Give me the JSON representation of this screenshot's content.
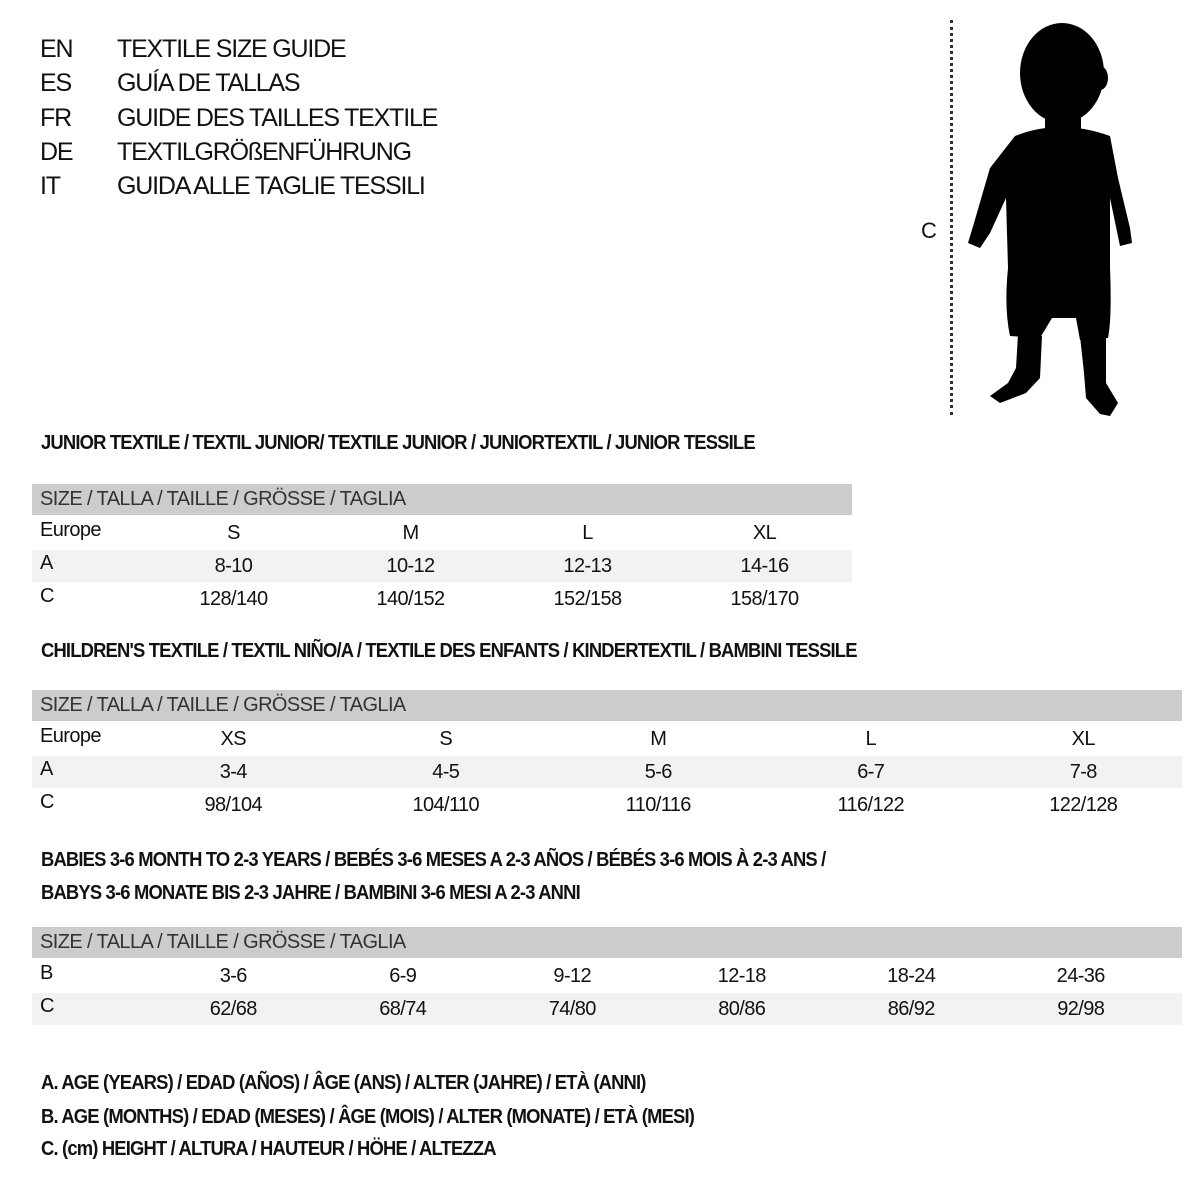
{
  "titles": [
    {
      "code": "EN",
      "text": "TEXTILE SIZE GUIDE"
    },
    {
      "code": "ES",
      "text": "GUÍA DE TALLAS"
    },
    {
      "code": "FR",
      "text": "GUIDE DES TAILLES TEXTILE"
    },
    {
      "code": "DE",
      "text": "TEXTILGRÖßENFÜHRUNG"
    },
    {
      "code": "IT",
      "text": "GUIDA ALLE TAGLIE TESSILI"
    }
  ],
  "figure": {
    "measure_label": "C"
  },
  "sections": [
    {
      "title_lines": [
        "JUNIOR TEXTILE / TEXTIL JUNIOR/ TEXTILE JUNIOR / JUNIORTEXTIL / JUNIOR TESSILE"
      ],
      "header": "SIZE / TALLA / TAILLE / GRÖSSE / TAGLIA",
      "rows": [
        {
          "label": "Europe",
          "values": [
            "S",
            "M",
            "L",
            "XL"
          ]
        },
        {
          "label": "A",
          "values": [
            "8-10",
            "10-12",
            "12-13",
            "14-16"
          ]
        },
        {
          "label": "C",
          "values": [
            "128/140",
            "140/152",
            "152/158",
            "158/170"
          ]
        }
      ]
    },
    {
      "title_lines": [
        "CHILDREN'S TEXTILE / TEXTIL NIÑO/A / TEXTILE DES ENFANTS / KINDERTEXTIL / BAMBINI TESSILE"
      ],
      "header": "SIZE / TALLA / TAILLE / GRÖSSE / TAGLIA",
      "rows": [
        {
          "label": "Europe",
          "values": [
            "XS",
            "S",
            "M",
            "L",
            "XL"
          ]
        },
        {
          "label": "A",
          "values": [
            "3-4",
            "4-5",
            "5-6",
            "6-7",
            "7-8"
          ]
        },
        {
          "label": "C",
          "values": [
            "98/104",
            "104/110",
            "110/116",
            "116/122",
            "122/128"
          ]
        }
      ]
    },
    {
      "title_lines": [
        "BABIES 3-6 MONTH TO 2-3 YEARS / BEBÉS 3-6 MESES A 2-3 AÑOS / BÉBÉS 3-6 MOIS À 2-3 ANS /",
        "BABYS 3-6 MONATE BIS 2-3 JAHRE / BAMBINI 3-6 MESI A 2-3 ANNI"
      ],
      "header": "SIZE / TALLA / TAILLE / GRÖSSE / TAGLIA",
      "rows": [
        {
          "label": "B",
          "values": [
            "3-6",
            "6-9",
            "9-12",
            "12-18",
            "18-24",
            "24-36"
          ]
        },
        {
          "label": "C",
          "values": [
            "62/68",
            "68/74",
            "74/80",
            "80/86",
            "86/92",
            "92/98"
          ]
        }
      ]
    }
  ],
  "legend": [
    "A. AGE (YEARS) / EDAD (AÑOS) / ÂGE (ANS) / ALTER (JAHRE) / ETÀ (ANNI)",
    "B. AGE (MONTHS) / EDAD (MESES) / ÂGE (MOIS) / ALTER (MONATE) / ETÀ (MESI)",
    "C. (cm) HEIGHT / ALTURA / HAUTEUR / HÖHE / ALTEZZA"
  ],
  "colors": {
    "header_row": "#cccccc",
    "shaded_row": "#f2f2f2",
    "text": "#111111"
  }
}
